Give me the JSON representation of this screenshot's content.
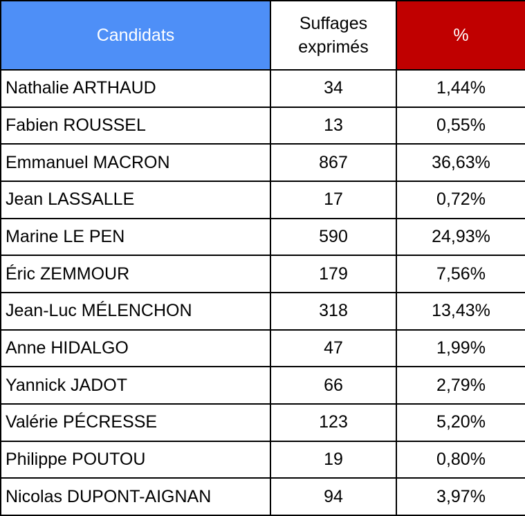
{
  "table": {
    "header": [
      "Candidats",
      "Suffages exprimés",
      "%"
    ],
    "rows": [
      [
        "Nathalie ARTHAUD",
        "34",
        "1,44%"
      ],
      [
        "Fabien ROUSSEL",
        "13",
        "0,55%"
      ],
      [
        "Emmanuel MACRON",
        "867",
        "36,63%"
      ],
      [
        "Jean LASSALLE",
        "17",
        "0,72%"
      ],
      [
        "Marine LE PEN",
        "590",
        "24,93%"
      ],
      [
        "Éric ZEMMOUR",
        "179",
        "7,56%"
      ],
      [
        "Jean-Luc MÉLENCHON",
        "318",
        "13,43%"
      ],
      [
        "Anne HIDALGO",
        "47",
        "1,99%"
      ],
      [
        "Yannick JADOT",
        "66",
        "2,79%"
      ],
      [
        "Valérie PÉCRESSE",
        "123",
        "5,20%"
      ],
      [
        "Philippe POUTOU",
        "19",
        "0,80%"
      ],
      [
        "Nicolas DUPONT-AIGNAN",
        "94",
        "3,97%"
      ]
    ]
  }
}
